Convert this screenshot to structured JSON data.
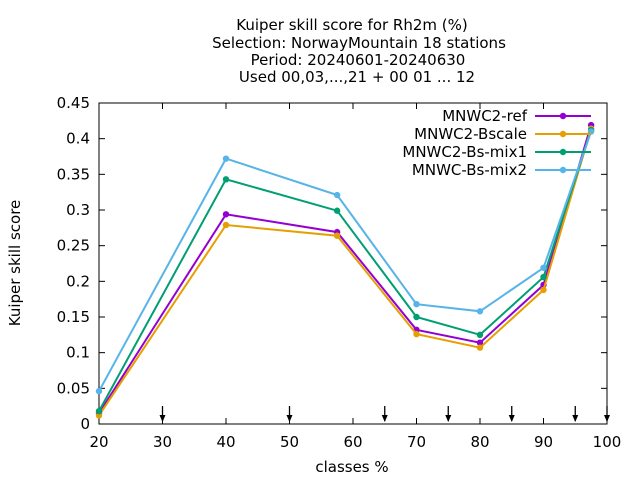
{
  "chart_data": {
    "type": "line",
    "title_lines": [
      "Kuiper skill score  for Rh2m (%)",
      "Selection: NorwayMountain     18 stations",
      "Period: 20240601-20240630",
      "Used 00,03,...,21 + 00 01 ... 12"
    ],
    "xlabel": "classes %",
    "ylabel": "Kuiper skill score",
    "xlim": [
      20,
      100
    ],
    "ylim": [
      0,
      0.45
    ],
    "xticks": [
      20,
      30,
      40,
      50,
      60,
      70,
      80,
      90,
      100
    ],
    "xtick_labels": [
      "20",
      "30",
      "40",
      "50",
      "60",
      "70",
      "80",
      "90",
      "100"
    ],
    "yticks": [
      0,
      0.05,
      0.1,
      0.15,
      0.2,
      0.25,
      0.3,
      0.35,
      0.4,
      0.45
    ],
    "ytick_labels": [
      "0",
      "0.05",
      "0.1",
      "0.15",
      "0.2",
      "0.25",
      "0.3",
      "0.35",
      "0.4",
      "0.45"
    ],
    "threshold_arrows": [
      30,
      50,
      65,
      75,
      85,
      95,
      100
    ],
    "grid": false,
    "legend_position": "top-right",
    "series": [
      {
        "name": "MNWC2-ref",
        "color": "#9400d3",
        "x": [
          20,
          40,
          57.5,
          70,
          80,
          90,
          97.5
        ],
        "y": [
          0.015,
          0.294,
          0.269,
          0.132,
          0.114,
          0.195,
          0.419
        ]
      },
      {
        "name": "MNWC2-Bscale",
        "color": "#e69f00",
        "x": [
          20,
          40,
          57.5,
          70,
          80,
          90,
          97.5
        ],
        "y": [
          0.012,
          0.279,
          0.264,
          0.126,
          0.107,
          0.188,
          0.414
        ]
      },
      {
        "name": "MNWC2-Bs-mix1",
        "color": "#009e73",
        "x": [
          20,
          40,
          57.5,
          70,
          80,
          90,
          97.5
        ],
        "y": [
          0.018,
          0.343,
          0.299,
          0.15,
          0.125,
          0.206,
          0.412
        ]
      },
      {
        "name": "MNWC-Bs-mix2",
        "color": "#56b4e9",
        "x": [
          20,
          40,
          57.5,
          70,
          80,
          90,
          97.5
        ],
        "y": [
          0.046,
          0.372,
          0.321,
          0.168,
          0.158,
          0.219,
          0.41
        ]
      }
    ]
  }
}
